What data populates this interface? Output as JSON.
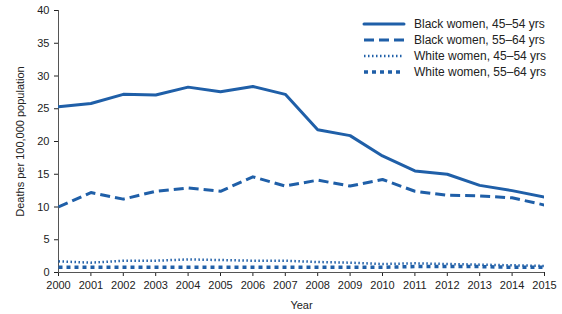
{
  "chart_data": {
    "type": "line",
    "x_label": "Year",
    "y_label": "Deaths per 100,000 population",
    "x": [
      2000,
      2001,
      2002,
      2003,
      2004,
      2005,
      2006,
      2007,
      2008,
      2009,
      2010,
      2011,
      2012,
      2013,
      2014,
      2015
    ],
    "series": [
      {
        "name": "Black women, 45–54 yrs",
        "color": "#1f5fa8",
        "line_style": "solid",
        "values": [
          25.3,
          25.8,
          27.2,
          27.1,
          28.3,
          27.6,
          28.4,
          27.2,
          21.8,
          20.9,
          17.8,
          15.5,
          15.0,
          13.3,
          12.5,
          11.5
        ]
      },
      {
        "name": "Black women, 55–64 yrs",
        "color": "#1f5fa8",
        "line_style": "dashed",
        "values": [
          10.0,
          12.2,
          11.2,
          12.4,
          12.9,
          12.4,
          14.6,
          13.2,
          14.1,
          13.2,
          14.2,
          12.4,
          11.8,
          11.7,
          11.4,
          10.3
        ]
      },
      {
        "name": "White women, 45–54 yrs",
        "color": "#1f5fa8",
        "line_style": "dotted",
        "values": [
          1.7,
          1.5,
          1.8,
          1.8,
          2.0,
          1.9,
          1.8,
          1.8,
          1.6,
          1.5,
          1.3,
          1.4,
          1.3,
          1.2,
          1.1,
          1.0
        ]
      },
      {
        "name": "White women, 55–64 yrs",
        "color": "#1f5fa8",
        "line_style": "square-dotted",
        "values": [
          0.8,
          0.8,
          0.8,
          0.8,
          0.8,
          0.8,
          0.8,
          0.8,
          0.8,
          0.8,
          0.8,
          0.9,
          0.9,
          0.9,
          0.8,
          0.8
        ]
      }
    ],
    "xlim": [
      2000,
      2015
    ],
    "xticks": [
      2000,
      2001,
      2002,
      2003,
      2004,
      2005,
      2006,
      2007,
      2008,
      2009,
      2010,
      2011,
      2012,
      2013,
      2014,
      2015
    ],
    "ylim": [
      0,
      40
    ],
    "yticks": [
      0,
      5,
      10,
      15,
      20,
      25,
      30,
      35,
      40
    ],
    "grid": false,
    "legend": "top-right"
  }
}
